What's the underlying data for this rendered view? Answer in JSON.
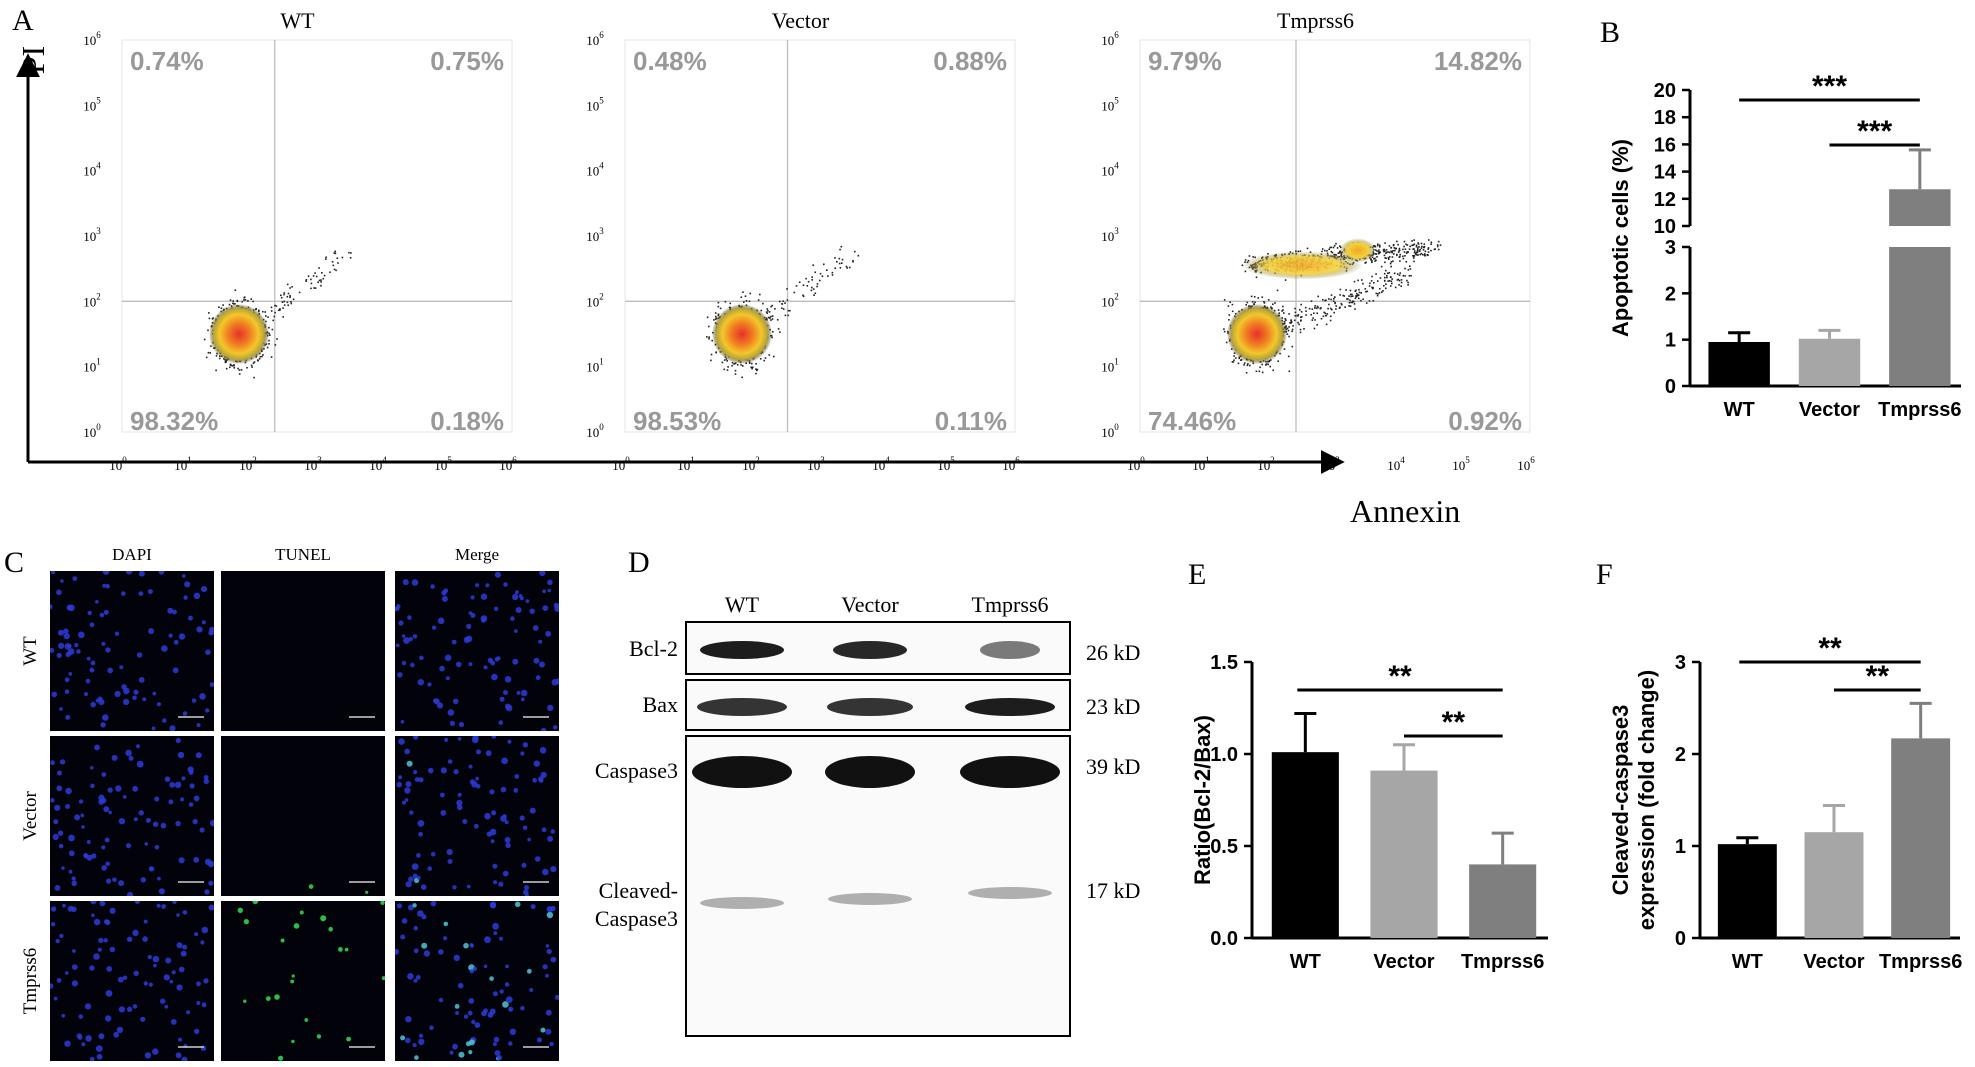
{
  "panel_letters": {
    "A": "A",
    "B": "B",
    "C": "C",
    "D": "D",
    "E": "E",
    "F": "F"
  },
  "flow": {
    "y_axis_label": "PI",
    "x_axis_label": "Annexin",
    "tick_exponents": [
      "0",
      "1",
      "2",
      "3",
      "4",
      "5",
      "6"
    ],
    "plots": [
      {
        "title": "WT",
        "ul": "0.74%",
        "ur": "0.75%",
        "ll": "98.32%",
        "lr": "0.18%"
      },
      {
        "title": "Vector",
        "ul": "0.48%",
        "ur": "0.88%",
        "ll": "98.53%",
        "lr": "0.11%"
      },
      {
        "title": "Tmprss6",
        "ul": "9.79%",
        "ur": "14.82%",
        "ll": "74.46%",
        "lr": "0.92%"
      }
    ]
  },
  "tunel": {
    "col_labels": [
      "DAPI",
      "TUNEL",
      "Merge"
    ],
    "row_labels": [
      "WT",
      "Vector",
      "Tmprss6"
    ]
  },
  "western": {
    "lanes": [
      "WT",
      "Vector",
      "Tmprss6"
    ],
    "bands": [
      {
        "name": "Bcl-2",
        "size": "26 kD"
      },
      {
        "name": "Bax",
        "size": "23 kD"
      },
      {
        "name": "Caspase3",
        "size": "39 kD"
      },
      {
        "name": "Cleaved-\nCaspase3",
        "size": "17 kD"
      }
    ]
  },
  "chart_data": [
    {
      "panel": "B",
      "type": "bar",
      "categories": [
        "WT",
        "Vector",
        "Tmprss6"
      ],
      "values": [
        0.95,
        1.02,
        12.7
      ],
      "errors": [
        0.2,
        0.18,
        2.9
      ],
      "ylabel": "Apoptotic cells (%)",
      "ylim": [
        0,
        20
      ],
      "axis_break": [
        3,
        10
      ],
      "yticks_lower": [
        "0",
        "1",
        "2",
        "3"
      ],
      "yticks_upper": [
        "10",
        "12",
        "14",
        "16",
        "18",
        "20"
      ],
      "colors": [
        "#000000",
        "#a6a6a6",
        "#7f7f7f"
      ],
      "significance": [
        {
          "from": "WT",
          "to": "Tmprss6",
          "label": "***"
        },
        {
          "from": "Vector",
          "to": "Tmprss6",
          "label": "***"
        }
      ]
    },
    {
      "panel": "E",
      "type": "bar",
      "categories": [
        "WT",
        "Vector",
        "Tmprss6"
      ],
      "values": [
        1.01,
        0.91,
        0.4
      ],
      "errors": [
        0.21,
        0.14,
        0.17
      ],
      "ylabel": "Ratio(Bcl-2/Bax)",
      "ylim": [
        0,
        1.5
      ],
      "yticks": [
        "0.0",
        "0.5",
        "1.0",
        "1.5"
      ],
      "colors": [
        "#000000",
        "#a6a6a6",
        "#7f7f7f"
      ],
      "significance": [
        {
          "from": "WT",
          "to": "Tmprss6",
          "label": "**"
        },
        {
          "from": "Vector",
          "to": "Tmprss6",
          "label": "**"
        }
      ]
    },
    {
      "panel": "F",
      "type": "bar",
      "categories": [
        "WT",
        "Vector",
        "Tmprss6"
      ],
      "values": [
        1.02,
        1.15,
        2.17
      ],
      "errors": [
        0.07,
        0.29,
        0.38
      ],
      "ylabel_lines": [
        "Cleaved-caspase3",
        "expression (fold change)"
      ],
      "ylim": [
        0,
        3
      ],
      "yticks": [
        "0",
        "1",
        "2",
        "3"
      ],
      "colors": [
        "#000000",
        "#a6a6a6",
        "#7f7f7f"
      ],
      "significance": [
        {
          "from": "WT",
          "to": "Tmprss6",
          "label": "**"
        },
        {
          "from": "Vector",
          "to": "Tmprss6",
          "label": "**"
        }
      ]
    }
  ]
}
